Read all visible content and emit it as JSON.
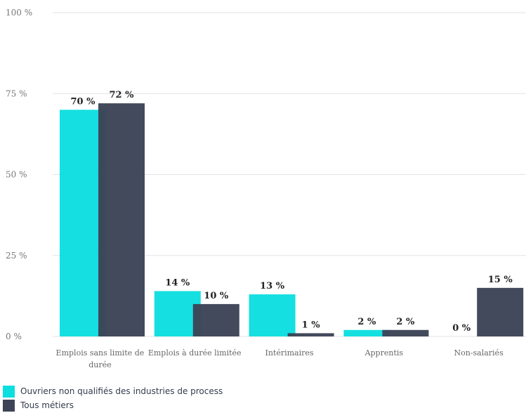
{
  "chart_data": {
    "type": "bar",
    "categories": [
      [
        "Emplois sans limite de",
        "durée"
      ],
      [
        "Emplois à durée limitée"
      ],
      [
        "Intérimaires"
      ],
      [
        "Apprentis"
      ],
      [
        "Non-salariés"
      ]
    ],
    "series": [
      {
        "name": "Ouvriers non qualifiés des industries de process",
        "color": "#0ddedf",
        "values": [
          70,
          14,
          13,
          2,
          0
        ],
        "labels": [
          "70 %",
          "14 %",
          "13 %",
          "2 %",
          "0 %"
        ]
      },
      {
        "name": "Tous métiers",
        "color": "#3d4457",
        "values": [
          72,
          10,
          1,
          2,
          15
        ],
        "labels": [
          "72 %",
          "10 %",
          "1 %",
          "2 %",
          "15 %"
        ]
      }
    ],
    "y_ticks": [
      0,
      25,
      50,
      75,
      100
    ],
    "y_tick_labels": [
      "0 %",
      "25 %",
      "50 %",
      "75 %",
      "100 %"
    ],
    "ylim": [
      0,
      100
    ],
    "grid": true,
    "legend_position": "bottom-left"
  }
}
